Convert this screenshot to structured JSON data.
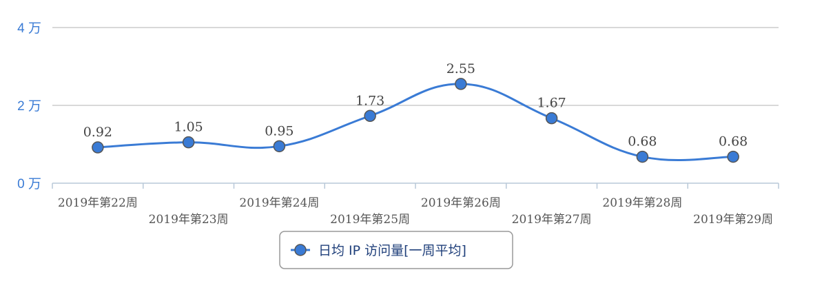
{
  "chart_data": {
    "type": "line",
    "smooth": true,
    "categories": [
      "2019年第22周",
      "2019年第23周",
      "2019年第24周",
      "2019年第25周",
      "2019年第26周",
      "2019年第27周",
      "2019年第28周",
      "2019年第29周"
    ],
    "series": [
      {
        "name": "日均 IP 访问量[一周平均]",
        "values": [
          0.92,
          1.05,
          0.95,
          1.73,
          2.55,
          1.67,
          0.68,
          0.68
        ],
        "color": "#3a7bd5"
      }
    ],
    "data_labels": [
      "0.92",
      "1.05",
      "0.95",
      "1.73",
      "2.55",
      "1.67",
      "0.68",
      "0.68"
    ],
    "yticks": [
      {
        "value": 0,
        "label": "0 万"
      },
      {
        "value": 2,
        "label": "2 万"
      },
      {
        "value": 4,
        "label": "4 万"
      }
    ],
    "ylim": [
      0,
      4
    ],
    "grid": true,
    "legend_position": "bottom-center",
    "marker_fill": "#3a7bd5",
    "marker_stroke": "#555555",
    "grid_color": "#c0c0c0",
    "axis_color": "#b8c8d8"
  }
}
